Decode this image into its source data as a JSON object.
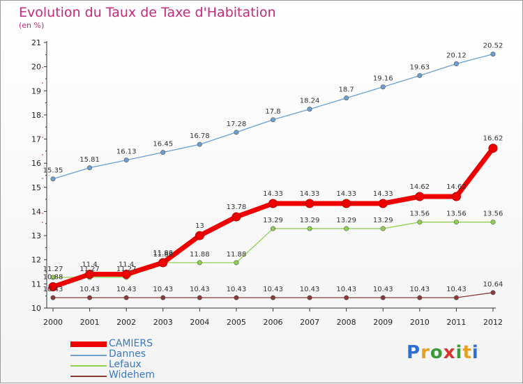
{
  "title": "Evolution du Taux de Taxe d'Habitation",
  "subtitle": "(en %)",
  "brand": "Proxiti",
  "chart_data": {
    "type": "line",
    "title": "Evolution du Taux de Taxe d'Habitation",
    "ylabel": "(en %)",
    "xlabel": "",
    "x": [
      "2000",
      "2001",
      "2002",
      "2003",
      "2004",
      "2005",
      "2006",
      "2007",
      "2008",
      "2009",
      "2010",
      "2011",
      "2012"
    ],
    "ylim": [
      10,
      21
    ],
    "yticks": [
      "10",
      "11",
      "12",
      "13",
      "14",
      "15",
      "16",
      "17",
      "18",
      "19",
      "20",
      "21"
    ],
    "grid": false,
    "legend_position": "bottom-left",
    "series": [
      {
        "name": "CAMIERS",
        "color": "#ee0000",
        "width": "thick",
        "values": [
          10.88,
          11.4,
          11.4,
          11.88,
          13,
          13.78,
          14.33,
          14.33,
          14.33,
          14.33,
          14.62,
          14.62,
          16.62
        ],
        "labels": [
          "10.88",
          "11.4",
          "11.4",
          "11.88",
          "13",
          "13.78",
          "14.33",
          "14.33",
          "14.33",
          "14.33",
          "14.62",
          "14.62",
          "16.62"
        ]
      },
      {
        "name": "Dannes",
        "color": "#6a9fd4",
        "values": [
          15.35,
          15.81,
          16.13,
          16.45,
          16.78,
          17.28,
          17.8,
          18.24,
          18.7,
          19.16,
          19.63,
          20.12,
          20.52
        ],
        "labels": [
          "15.35",
          "15.81",
          "16.13",
          "16.45",
          "16.78",
          "17.28",
          "17.8",
          "18.24",
          "18.7",
          "19.16",
          "19.63",
          "20.12",
          "20.52"
        ]
      },
      {
        "name": "Lefaux",
        "color": "#8fd14f",
        "values": [
          11.27,
          11.27,
          11.27,
          11.88,
          11.88,
          11.88,
          13.29,
          13.29,
          13.29,
          13.29,
          13.56,
          13.56,
          13.56
        ],
        "labels": [
          "11.27",
          "11.27",
          "11.27",
          "11.88",
          "11.88",
          "11.88",
          "13.29",
          "13.29",
          "13.29",
          "13.29",
          "13.56",
          "13.56",
          "13.56"
        ]
      },
      {
        "name": "Widehem",
        "color": "#8b3a3a",
        "values": [
          10.43,
          10.43,
          10.43,
          10.43,
          10.43,
          10.43,
          10.43,
          10.43,
          10.43,
          10.43,
          10.43,
          10.43,
          10.64
        ],
        "labels": [
          "10.43",
          "10.43",
          "10.43",
          "10.43",
          "10.43",
          "10.43",
          "10.43",
          "10.43",
          "10.43",
          "10.43",
          "10.43",
          "10.43",
          "10.64"
        ]
      }
    ]
  }
}
